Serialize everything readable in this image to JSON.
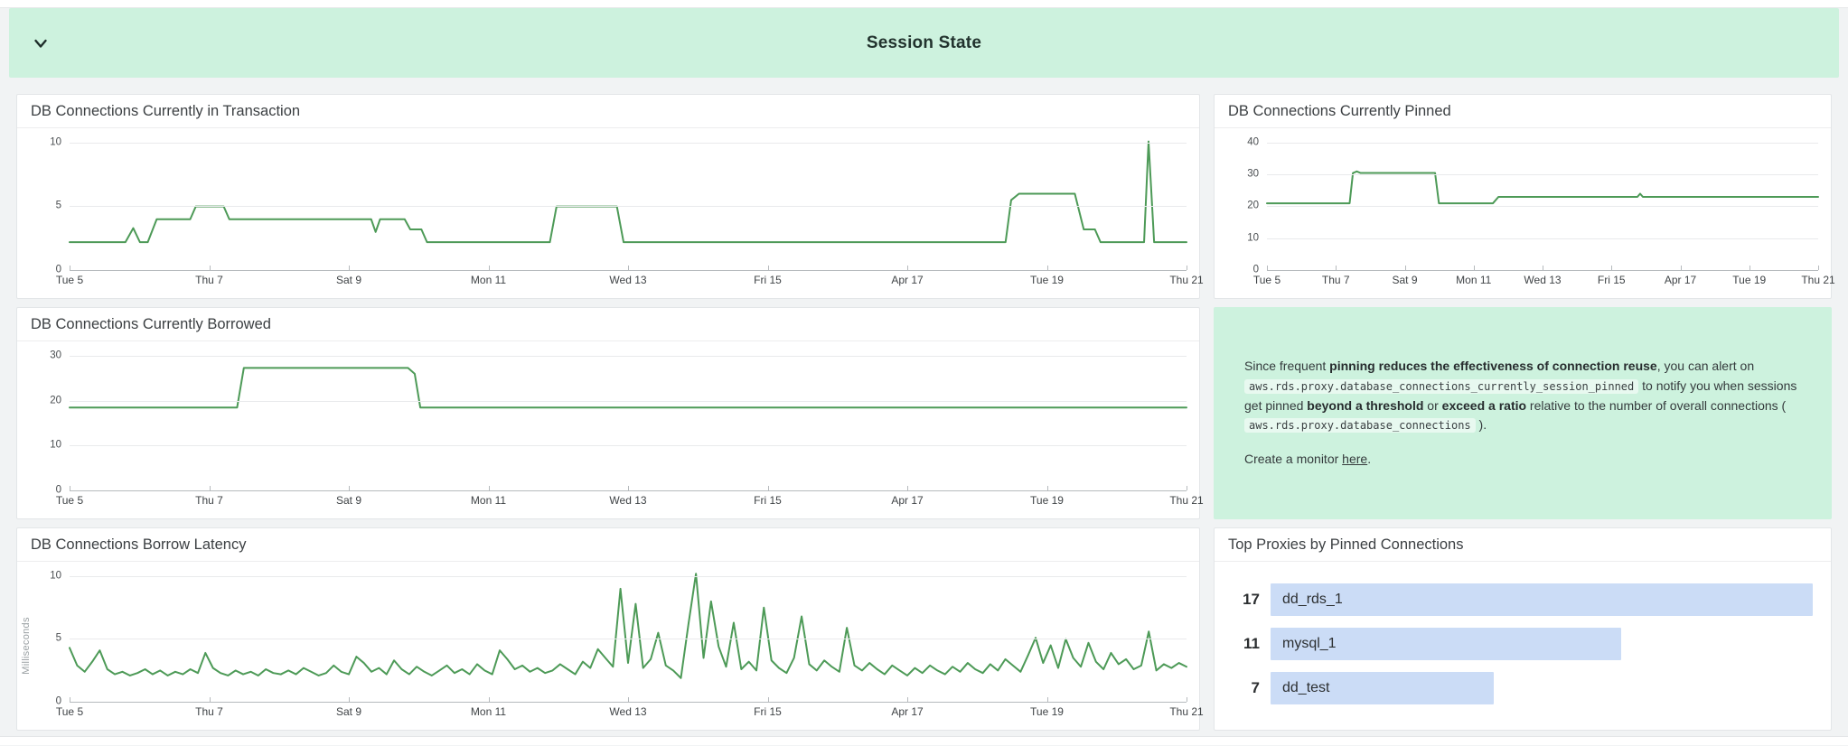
{
  "section": {
    "title": "Session State"
  },
  "colors": {
    "banner_bg": "#cdf2de",
    "line_green": "#4d9a57",
    "bar_blue": "#cbdcf6",
    "panel_border": "#e3e6e8"
  },
  "charts": [
    {
      "type": "line",
      "title": "DB Connections Currently in Transaction",
      "y_ticks": [
        10,
        5,
        0
      ],
      "x_labels": [
        "Tue 5",
        "Thu 7",
        "Sat 9",
        "Mon 11",
        "Wed 13",
        "Fri 15",
        "Apr 17",
        "Tue 19",
        "Thu 21"
      ],
      "line_color": "#4d9a57",
      "points": [
        [
          0,
          2.2
        ],
        [
          0.05,
          2.2
        ],
        [
          0.057,
          3.3
        ],
        [
          0.063,
          2.2
        ],
        [
          0.07,
          2.2
        ],
        [
          0.078,
          4
        ],
        [
          0.108,
          4
        ],
        [
          0.113,
          5
        ],
        [
          0.138,
          5
        ],
        [
          0.143,
          4
        ],
        [
          0.27,
          4
        ],
        [
          0.274,
          3
        ],
        [
          0.278,
          4
        ],
        [
          0.3,
          4
        ],
        [
          0.305,
          3.2
        ],
        [
          0.315,
          3.2
        ],
        [
          0.32,
          2.2
        ],
        [
          0.43,
          2.2
        ],
        [
          0.436,
          5
        ],
        [
          0.49,
          5
        ],
        [
          0.496,
          2.2
        ],
        [
          0.838,
          2.2
        ],
        [
          0.843,
          5.5
        ],
        [
          0.85,
          6
        ],
        [
          0.9,
          6
        ],
        [
          0.908,
          3.2
        ],
        [
          0.918,
          3.2
        ],
        [
          0.923,
          2.2
        ],
        [
          0.962,
          2.2
        ],
        [
          0.966,
          10.1
        ],
        [
          0.971,
          2.2
        ],
        [
          1,
          2.2
        ]
      ]
    },
    {
      "type": "line",
      "title": "DB Connections Currently Pinned",
      "y_ticks": [
        40,
        30,
        20,
        10,
        0
      ],
      "x_labels": [
        "Tue 5",
        "Thu 7",
        "Sat 9",
        "Mon 11",
        "Wed 13",
        "Fri 15",
        "Apr 17",
        "Tue 19",
        "Thu 21"
      ],
      "line_color": "#4d9a57",
      "points": [
        [
          0,
          21
        ],
        [
          0.15,
          21
        ],
        [
          0.156,
          30.5
        ],
        [
          0.163,
          31
        ],
        [
          0.17,
          30.5
        ],
        [
          0.305,
          30.5
        ],
        [
          0.312,
          21
        ],
        [
          0.41,
          21
        ],
        [
          0.42,
          23
        ],
        [
          0.672,
          23
        ],
        [
          0.677,
          24
        ],
        [
          0.682,
          23
        ],
        [
          1,
          23
        ]
      ]
    },
    {
      "type": "line",
      "title": "DB Connections Currently Borrowed",
      "y_ticks": [
        30,
        20,
        10,
        0
      ],
      "x_labels": [
        "Tue 5",
        "Thu 7",
        "Sat 9",
        "Mon 11",
        "Wed 13",
        "Fri 15",
        "Apr 17",
        "Tue 19",
        "Thu 21"
      ],
      "line_color": "#4d9a57",
      "points": [
        [
          0,
          18.5
        ],
        [
          0.15,
          18.5
        ],
        [
          0.156,
          27.3
        ],
        [
          0.303,
          27.3
        ],
        [
          0.309,
          26
        ],
        [
          0.314,
          18.5
        ],
        [
          1,
          18.5
        ]
      ]
    },
    {
      "type": "line",
      "title": "DB Connections Borrow Latency",
      "unit": "Milliseconds",
      "y_ticks": [
        10,
        5,
        0
      ],
      "x_labels": [
        "Tue 5",
        "Thu 7",
        "Sat 9",
        "Mon 11",
        "Wed 13",
        "Fri 15",
        "Apr 17",
        "Tue 19",
        "Thu 21"
      ],
      "line_color": "#4d9a57",
      "values": [
        4.3,
        2.9,
        2.4,
        3.2,
        4.1,
        2.6,
        2.2,
        2.4,
        2.1,
        2.3,
        2.6,
        2.2,
        2.5,
        2.1,
        2.4,
        2.2,
        2.6,
        2.3,
        3.9,
        2.7,
        2.3,
        2.1,
        2.5,
        2.2,
        2.4,
        2.1,
        2.6,
        2.3,
        2.2,
        2.5,
        2.2,
        2.7,
        2.4,
        2.1,
        2.3,
        2.9,
        2.4,
        2.2,
        3.6,
        3.1,
        2.4,
        2.7,
        2.2,
        3.3,
        2.6,
        2.2,
        2.8,
        2.4,
        2.1,
        2.5,
        2.9,
        2.3,
        2.6,
        2.2,
        3.0,
        2.5,
        2.2,
        4.1,
        3.4,
        2.6,
        2.9,
        2.4,
        2.7,
        2.3,
        2.5,
        3.0,
        2.6,
        2.2,
        3.2,
        2.7,
        4.2,
        3.5,
        2.8,
        9.0,
        3.1,
        7.8,
        2.7,
        3.4,
        5.5,
        2.9,
        2.5,
        1.9,
        6.2,
        10.2,
        3.5,
        8.0,
        4.4,
        2.8,
        6.3,
        2.6,
        3.2,
        2.5,
        7.5,
        3.3,
        2.7,
        2.3,
        3.5,
        6.8,
        3.0,
        2.5,
        3.3,
        2.8,
        2.4,
        5.9,
        2.9,
        2.5,
        3.1,
        2.6,
        2.2,
        2.9,
        2.5,
        2.1,
        2.7,
        2.3,
        2.9,
        2.5,
        2.2,
        2.8,
        2.4,
        3.1,
        2.6,
        2.3,
        3.0,
        2.5,
        3.4,
        2.9,
        2.4,
        3.7,
        5.1,
        3.1,
        4.5,
        2.7,
        5.0,
        3.5,
        2.8,
        4.7,
        3.2,
        2.6,
        3.9,
        3.0,
        3.4,
        2.6,
        2.9,
        5.6,
        2.5,
        3.0,
        2.7,
        3.1,
        2.8
      ]
    }
  ],
  "info_box": {
    "paragraph": [
      {
        "t": "Since frequent "
      },
      {
        "t": "pinning reduces the effectiveness of connection reuse",
        "b": true
      },
      {
        "t": ", you can alert on "
      },
      {
        "t": "aws.rds.proxy.database_connections_currently_session_pinned",
        "code": true
      },
      {
        "t": " to notify you when sessions get pinned "
      },
      {
        "t": "beyond a threshold",
        "b": true
      },
      {
        "t": " or "
      },
      {
        "t": "exceed a ratio",
        "b": true
      },
      {
        "t": " relative to the number of overall connections ( "
      },
      {
        "t": "aws.rds.proxy.database_connections",
        "code": true
      },
      {
        "t": " )."
      }
    ],
    "cta": [
      {
        "t": "Create a monitor "
      },
      {
        "t": "here",
        "link": true
      },
      {
        "t": "."
      }
    ]
  },
  "top_proxies": {
    "type": "bar",
    "title": "Top Proxies by Pinned Connections",
    "max": 17,
    "bar_color": "#cbdcf6",
    "bars": [
      {
        "label": "dd_rds_1",
        "value": 17
      },
      {
        "label": "mysql_1",
        "value": 11
      },
      {
        "label": "dd_test",
        "value": 7
      }
    ]
  }
}
